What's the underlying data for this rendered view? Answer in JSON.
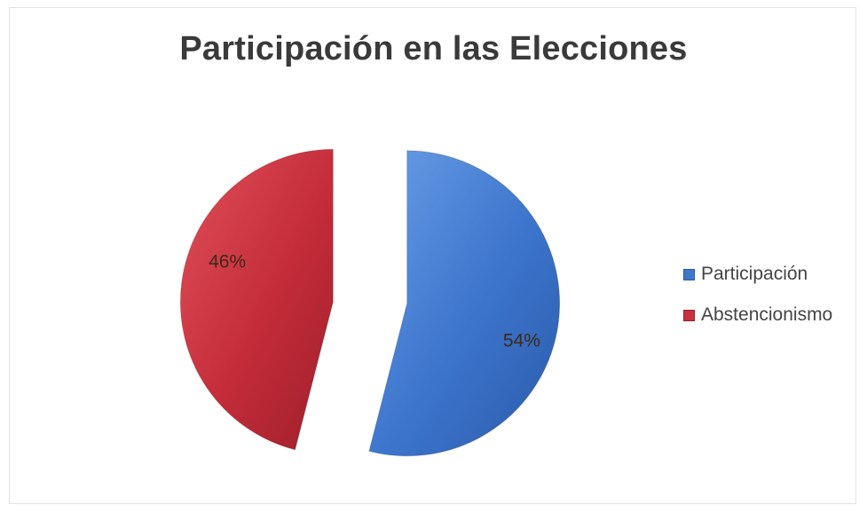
{
  "chart_data": {
    "type": "pie",
    "title": "Participación en las Elecciones",
    "categories": [
      "Participación",
      "Abstencionismo"
    ],
    "values": [
      54,
      46
    ],
    "data_labels": [
      "54%",
      "46%"
    ],
    "colors": [
      "#3f77cc",
      "#c7323f"
    ],
    "legend_position": "right",
    "exploded": true
  }
}
